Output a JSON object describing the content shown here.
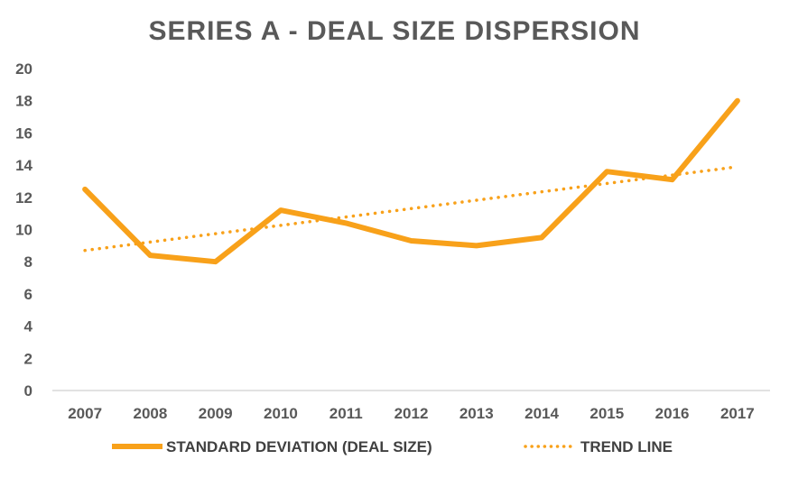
{
  "chart_data": {
    "type": "line",
    "title": "SERIES A - DEAL SIZE DISPERSION",
    "categories": [
      "2007",
      "2008",
      "2009",
      "2010",
      "2011",
      "2012",
      "2013",
      "2014",
      "2015",
      "2016",
      "2017"
    ],
    "ylim": [
      0,
      20
    ],
    "yticks": [
      0,
      2,
      4,
      6,
      8,
      10,
      12,
      14,
      16,
      18,
      20
    ],
    "xlabel": "",
    "ylabel": "",
    "grid": false,
    "legend_position": "bottom",
    "series": [
      {
        "name": "STANDARD DEVIATION (DEAL SIZE)",
        "style": "solid",
        "color": "#F8A11A",
        "values": [
          12.5,
          8.4,
          8.0,
          11.2,
          10.4,
          9.3,
          9.0,
          9.5,
          13.6,
          13.1,
          18.0
        ]
      },
      {
        "name": "TREND LINE",
        "style": "dotted",
        "color": "#F8A11A",
        "values": [
          8.7,
          9.22,
          9.74,
          10.26,
          10.78,
          11.3,
          11.82,
          12.34,
          12.86,
          13.38,
          13.9
        ]
      }
    ],
    "colors": {
      "axis": "#D9D9D9",
      "text": "#595959"
    }
  }
}
